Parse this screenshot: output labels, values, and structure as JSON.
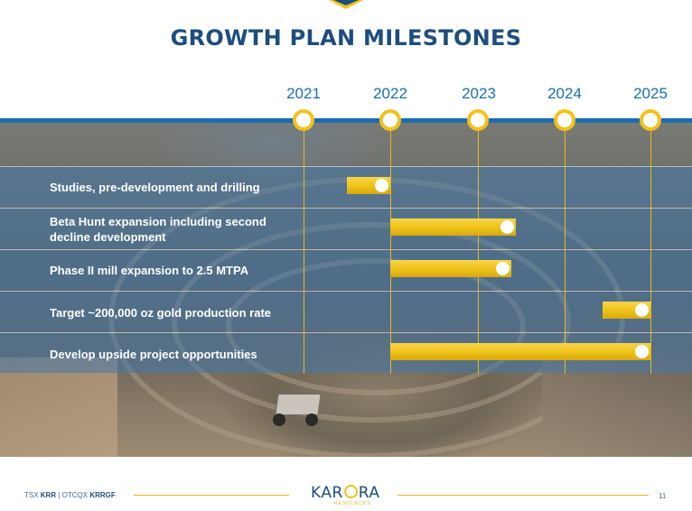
{
  "slide": {
    "title": "GROWTH PLAN MILESTONES",
    "page_number": "11"
  },
  "timeline": {
    "years": [
      "2021",
      "2022",
      "2023",
      "2024",
      "2025"
    ],
    "line_color": "#1b6db3",
    "node_color": "#f2c21b"
  },
  "milestones": [
    {
      "label": "Studies, pre-development and drilling",
      "start": 2021.5,
      "end": 2022.0
    },
    {
      "label": "Beta Hunt expansion including second decline development",
      "start": 2022.0,
      "end": 2023.45
    },
    {
      "label": "Phase II mill expansion to 2.5 MTPA",
      "start": 2022.0,
      "end": 2023.4
    },
    {
      "label": "Target ~200,000 oz gold production rate",
      "start": 2024.45,
      "end": 2025.0
    },
    {
      "label": "Develop upside project opportunities",
      "start": 2022.0,
      "end": 2025.0
    }
  ],
  "footer": {
    "ticker_prefix_1": "TSX ",
    "ticker_1": "KRR",
    "separator": " | OTCQX ",
    "ticker_2": "KRRGF",
    "logo_left": "KAR",
    "logo_right": "RA",
    "logo_sub": "RESOURCES"
  },
  "colors": {
    "title": "#1d4e7e",
    "accent": "#f0c419",
    "year_text": "#1b6db3"
  }
}
